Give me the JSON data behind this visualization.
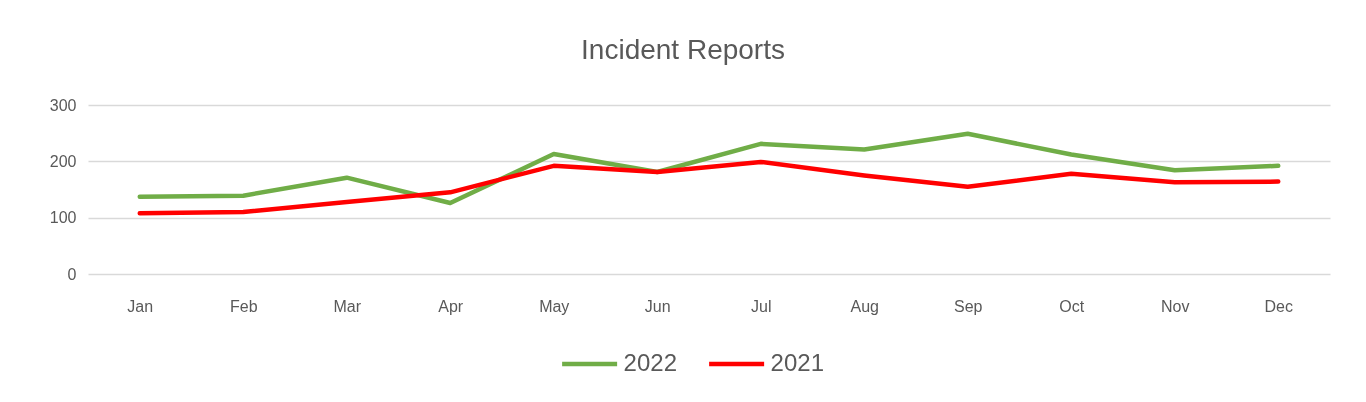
{
  "chart_data": {
    "type": "line",
    "title": "Incident Reports",
    "categories": [
      "Jan",
      "Feb",
      "Mar",
      "Apr",
      "May",
      "Jun",
      "Jul",
      "Aug",
      "Sep",
      "Oct",
      "Nov",
      "Dec"
    ],
    "series": [
      {
        "name": "2022",
        "color": "#70ad47",
        "values": [
          137,
          139,
          171,
          126,
          213,
          181,
          231,
          221,
          249,
          212,
          184,
          192
        ]
      },
      {
        "name": "2021",
        "color": "#ff0000",
        "values": [
          108,
          110,
          128,
          145,
          192,
          181,
          199,
          175,
          155,
          178,
          163,
          164
        ]
      }
    ],
    "ylim": [
      0,
      300
    ],
    "yticks": [
      0,
      100,
      200,
      300
    ],
    "grid": "y",
    "legend": "bottom",
    "line_style": "solid"
  }
}
